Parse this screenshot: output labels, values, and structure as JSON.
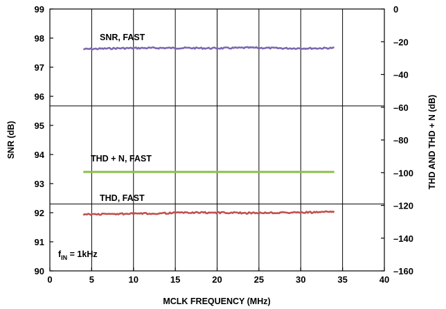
{
  "chart_data": {
    "type": "line",
    "xlabel": "MCLK FREQUENCY (MHz)",
    "ylabel_left": "SNR (dB)",
    "ylabel_right": "THD AND THD + N (dB)",
    "xlim": [
      0,
      40
    ],
    "ylim_left": [
      90,
      99
    ],
    "ylim_right": [
      -160,
      0
    ],
    "x_ticks": [
      "0",
      "5",
      "10",
      "15",
      "20",
      "25",
      "30",
      "35",
      "40"
    ],
    "y_left_ticks": [
      "90",
      "91",
      "92",
      "93",
      "94",
      "95",
      "96",
      "97",
      "98",
      "99"
    ],
    "y_right_ticks": [
      "0",
      "–20",
      "–40",
      "–60",
      "–80",
      "–100",
      "–120",
      "–140",
      "–160"
    ],
    "gridlines_x": [
      5,
      10,
      15,
      20,
      25,
      30,
      35
    ],
    "gridlines_y_left": [
      95.67,
      92.3
    ],
    "series": [
      {
        "name": "SNR, FAST",
        "axis": "left",
        "color": "#7b68b0",
        "x": [
          4,
          8,
          12,
          16,
          20,
          24,
          28,
          32,
          34
        ],
        "y": [
          97.62,
          97.65,
          97.66,
          97.66,
          97.65,
          97.67,
          97.65,
          97.65,
          97.66
        ]
      },
      {
        "name": "THD + N, FAST",
        "axis": "right",
        "color": "#8cbf4a",
        "x": [
          4,
          34
        ],
        "y": [
          -99.5,
          -99.5
        ]
      },
      {
        "name": "THD, FAST",
        "axis": "right",
        "color": "#c0504d",
        "x": [
          4,
          8,
          12,
          16,
          20,
          24,
          28,
          32,
          34
        ],
        "y": [
          -125.5,
          -125.2,
          -125.0,
          -124.4,
          -124.4,
          -124.6,
          -124.4,
          -124.2,
          -123.8
        ]
      }
    ],
    "annotations": [
      {
        "label": "SNR, FAST"
      },
      {
        "label": "THD + N, FAST"
      },
      {
        "label": "THD, FAST"
      }
    ],
    "condition": {
      "prefix": "f",
      "subscript": "IN",
      "suffix": " = 1kHz"
    }
  }
}
